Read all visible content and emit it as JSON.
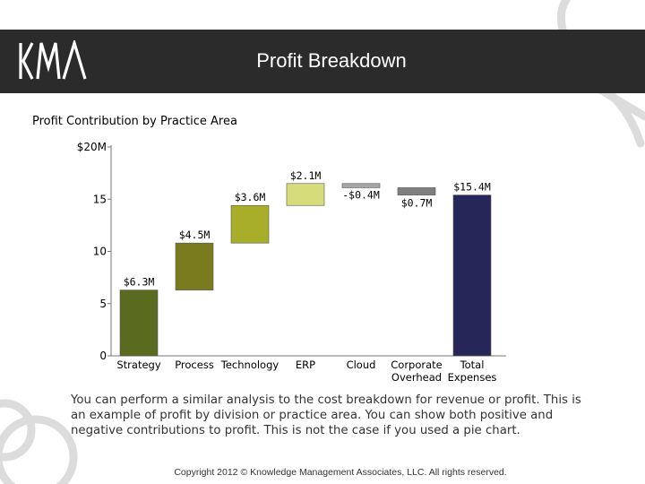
{
  "header": {
    "logo_text": "KMA",
    "title": "Profit Breakdown"
  },
  "chart_data": {
    "type": "bar",
    "subtype": "waterfall",
    "title": "Profit Contribution by Practice Area",
    "categories": [
      "Strategy",
      "Process",
      "Technology",
      "ERP",
      "Cloud",
      "Corporate Overhead",
      "Total Expenses"
    ],
    "tick_labels": [
      "Strategy",
      "Process",
      "Technology",
      "ERP",
      "Cloud",
      "Corporate\nOverhead",
      "Total\nExpenses"
    ],
    "bars": [
      {
        "base": 0,
        "top": 6.3,
        "label": "$6.3M",
        "color": "#5a6b1f"
      },
      {
        "base": 6.3,
        "top": 10.8,
        "label": "$4.5M",
        "color": "#7a7a1e"
      },
      {
        "base": 10.8,
        "top": 14.4,
        "label": "$3.6M",
        "color": "#a8ae2a"
      },
      {
        "base": 14.4,
        "top": 16.5,
        "label": "$2.1M",
        "color": "#d6dc7a"
      },
      {
        "base": 16.1,
        "top": 16.5,
        "label": "-$0.4M",
        "color": "#a6a6a6"
      },
      {
        "base": 15.4,
        "top": 16.1,
        "label": "$0.7M",
        "color": "#7f7f7f"
      },
      {
        "base": 0,
        "top": 15.4,
        "label": "$15.4M",
        "color": "#262659"
      }
    ],
    "yticks": [
      {
        "value": 0,
        "label": "0"
      },
      {
        "value": 5,
        "label": "5"
      },
      {
        "value": 10,
        "label": "10"
      },
      {
        "value": 15,
        "label": "15"
      },
      {
        "value": 20,
        "label": "$20M"
      }
    ],
    "ylim": [
      0,
      20
    ],
    "grid": false,
    "legend": "none"
  },
  "body_text": "You can perform a similar analysis to the cost breakdown for revenue or profit. This is an example of profit by division or practice area. You can show both positive and negative contributions to profit.  This is not the case if you used a pie chart.",
  "footer": "Copyright 2012 © Knowledge Management Associates, LLC.  All rights reserved."
}
